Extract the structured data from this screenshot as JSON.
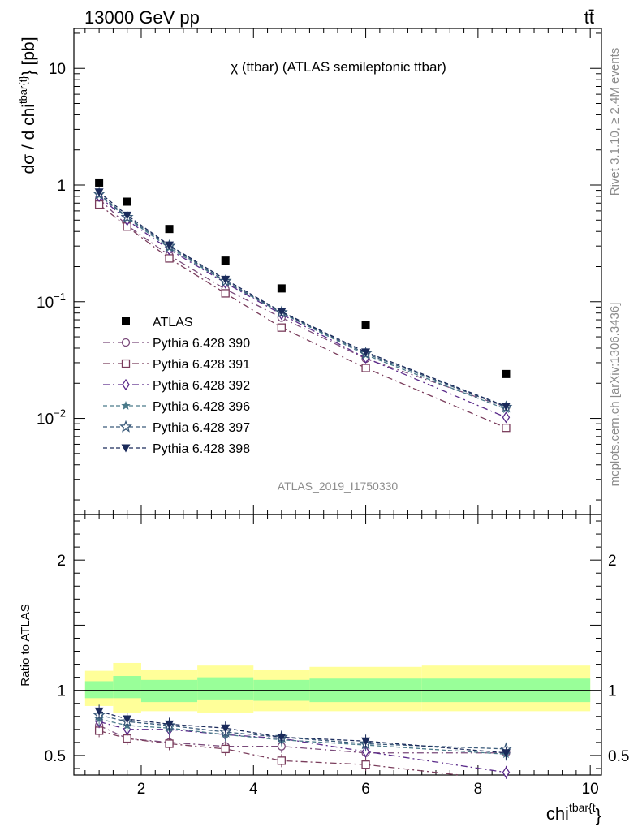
{
  "header": {
    "energy_label": "13000 GeV pp",
    "process_label": "tt̄"
  },
  "side_labels": {
    "rivet": "Rivet 3.1.10, ≥ 2.4M events",
    "mcplots": "mcplots.cern.ch [arXiv:1306.3436]"
  },
  "chart_data": {
    "type": "scatter",
    "title": "χ (ttbar) (ATLAS semileptonic ttbar)",
    "watermark": "ATLAS_2019_I1750330",
    "xlabel": "chi^{tbar{t}}",
    "xlim": [
      0.8,
      10.2
    ],
    "x_ticks": [
      2,
      4,
      6,
      8,
      10
    ],
    "main": {
      "ylabel": "dσ / d chi^{tbar{t}} [pb]",
      "yscale": "log",
      "ylim": [
        0.0015,
        22
      ],
      "y_ticks": [
        {
          "value": 10,
          "label": "10"
        },
        {
          "value": 1,
          "label": "1"
        },
        {
          "value": 0.1,
          "label": "10^-1"
        },
        {
          "value": 0.01,
          "label": "10^-2"
        }
      ],
      "legend_position": "bottom-left",
      "series": [
        {
          "name": "ATLAS",
          "marker": "filled-square",
          "line": "none",
          "color": "#000000",
          "x": [
            1.25,
            1.75,
            2.5,
            3.5,
            4.5,
            6.0,
            8.5
          ],
          "y": [
            1.05,
            0.72,
            0.42,
            0.225,
            0.13,
            0.063,
            0.024
          ]
        },
        {
          "name": "Pythia 6.428 390",
          "marker": "open-circle",
          "line": "dash-dot",
          "color": "#7a4a7a",
          "x": [
            1.25,
            1.75,
            2.5,
            3.5,
            4.5,
            6.0,
            8.5
          ],
          "y": [
            0.76,
            0.45,
            0.25,
            0.128,
            0.073,
            0.0325,
            0.0125
          ]
        },
        {
          "name": "Pythia 6.428 391",
          "marker": "open-square",
          "line": "dash-dot",
          "color": "#7a3d5c",
          "x": [
            1.25,
            1.75,
            2.5,
            3.5,
            4.5,
            6.0,
            8.5
          ],
          "y": [
            0.68,
            0.44,
            0.235,
            0.118,
            0.06,
            0.027,
            0.0083
          ]
        },
        {
          "name": "Pythia 6.428 392",
          "marker": "open-diamond",
          "line": "dash-dot",
          "color": "#5a2a8a",
          "x": [
            1.25,
            1.75,
            2.5,
            3.5,
            4.5,
            6.0,
            8.5
          ],
          "y": [
            0.8,
            0.5,
            0.28,
            0.145,
            0.078,
            0.033,
            0.0102
          ]
        },
        {
          "name": "Pythia 6.428 396",
          "marker": "filled-star",
          "line": "dashed",
          "color": "#4a7a8a",
          "x": [
            1.25,
            1.75,
            2.5,
            3.5,
            4.5,
            6.0,
            8.5
          ],
          "y": [
            0.82,
            0.52,
            0.29,
            0.148,
            0.08,
            0.035,
            0.012
          ]
        },
        {
          "name": "Pythia 6.428 397",
          "marker": "open-star",
          "line": "dashed",
          "color": "#3a5a7a",
          "x": [
            1.25,
            1.75,
            2.5,
            3.5,
            4.5,
            6.0,
            8.5
          ],
          "y": [
            0.84,
            0.53,
            0.3,
            0.15,
            0.081,
            0.036,
            0.0125
          ]
        },
        {
          "name": "Pythia 6.428 398",
          "marker": "filled-triangle-down",
          "line": "dashed",
          "color": "#1a2a5a",
          "x": [
            1.25,
            1.75,
            2.5,
            3.5,
            4.5,
            6.0,
            8.5
          ],
          "y": [
            0.87,
            0.55,
            0.305,
            0.155,
            0.082,
            0.037,
            0.0127
          ]
        }
      ]
    },
    "ratio": {
      "ylabel": "Ratio to ATLAS",
      "ylim": [
        0.35,
        2.35
      ],
      "y_ticks": [
        {
          "value": 0.5,
          "label": "0.5"
        },
        {
          "value": 1,
          "label": "1"
        },
        {
          "value": 2,
          "label": "2"
        }
      ],
      "bands": {
        "bins": [
          [
            1.0,
            1.5
          ],
          [
            1.5,
            2.0
          ],
          [
            2.0,
            3.0
          ],
          [
            3.0,
            4.0
          ],
          [
            4.0,
            5.0
          ],
          [
            5.0,
            7.0
          ],
          [
            7.0,
            10.0
          ]
        ],
        "inner": [
          [
            0.94,
            1.07
          ],
          [
            0.94,
            1.11
          ],
          [
            0.91,
            1.08
          ],
          [
            0.93,
            1.1
          ],
          [
            0.92,
            1.08
          ],
          [
            0.91,
            1.09
          ],
          [
            0.91,
            1.09
          ]
        ],
        "outer": [
          [
            0.88,
            1.15
          ],
          [
            0.83,
            1.21
          ],
          [
            0.84,
            1.16
          ],
          [
            0.83,
            1.19
          ],
          [
            0.84,
            1.16
          ],
          [
            0.84,
            1.18
          ],
          [
            0.84,
            1.19
          ]
        ],
        "inner_color": "#99ff99",
        "outer_color": "#ffff99"
      },
      "series": [
        {
          "name": "Pythia 6.428 390",
          "y": [
            0.73,
            0.63,
            0.6,
            0.57,
            0.57,
            0.52,
            0.52
          ]
        },
        {
          "name": "Pythia 6.428 391",
          "y": [
            0.69,
            0.63,
            0.59,
            0.55,
            0.46,
            0.43,
            0.31
          ]
        },
        {
          "name": "Pythia 6.428 392",
          "y": [
            0.76,
            0.7,
            0.7,
            0.66,
            0.63,
            0.53,
            0.37
          ]
        },
        {
          "name": "Pythia 6.428 396",
          "y": [
            0.78,
            0.73,
            0.71,
            0.66,
            0.62,
            0.58,
            0.51
          ]
        },
        {
          "name": "Pythia 6.428 397",
          "y": [
            0.81,
            0.76,
            0.73,
            0.68,
            0.64,
            0.59,
            0.55
          ]
        },
        {
          "name": "Pythia 6.428 398",
          "y": [
            0.84,
            0.78,
            0.74,
            0.71,
            0.64,
            0.61,
            0.52
          ]
        }
      ]
    }
  }
}
